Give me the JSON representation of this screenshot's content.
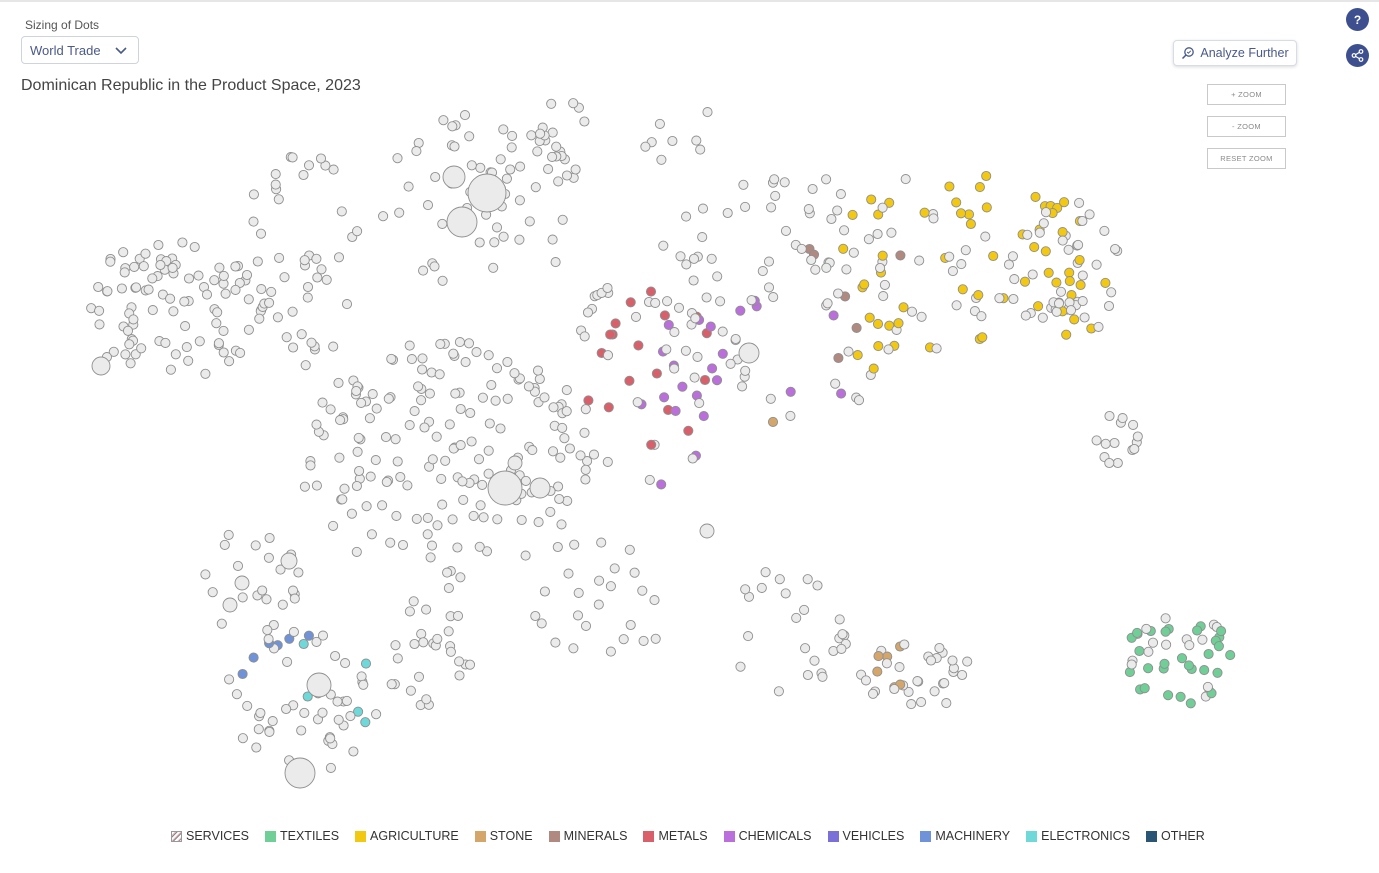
{
  "sizing": {
    "label": "Sizing of Dots",
    "value": "World Trade"
  },
  "title": "Dominican Republic in the Product Space, 2023",
  "analyze_label": "Analyze Further",
  "help_label": "?",
  "zoom": {
    "in": "+ ZOOM",
    "out": "- ZOOM",
    "reset": "RESET ZOOM"
  },
  "colors": {
    "neutral_fill": "#ebebeb",
    "neutral_stroke": "#8f8f8f",
    "accent": "#3d4f8f"
  },
  "legend": [
    {
      "label": "SERVICES",
      "color": "#e8b8c0",
      "hatched": true
    },
    {
      "label": "TEXTILES",
      "color": "#6fcf97"
    },
    {
      "label": "AGRICULTURE",
      "color": "#f2c811"
    },
    {
      "label": "STONE",
      "color": "#d4a66a"
    },
    {
      "label": "MINERALS",
      "color": "#b08a80"
    },
    {
      "label": "METALS",
      "color": "#d9606a"
    },
    {
      "label": "CHEMICALS",
      "color": "#bb6fdd"
    },
    {
      "label": "VEHICLES",
      "color": "#7a70d8"
    },
    {
      "label": "MACHINERY",
      "color": "#6f92d8"
    },
    {
      "label": "ELECTRONICS",
      "color": "#6fd8d8"
    },
    {
      "label": "OTHER",
      "color": "#2a5575"
    }
  ],
  "highlighted_products": {
    "AGRICULTURE": 62,
    "TEXTILES": 30,
    "CHEMICALS": 22,
    "METALS": 18,
    "MINERALS": 6,
    "STONE": 7,
    "MACHINERY": 6,
    "ELECTRONICS": 5
  }
}
